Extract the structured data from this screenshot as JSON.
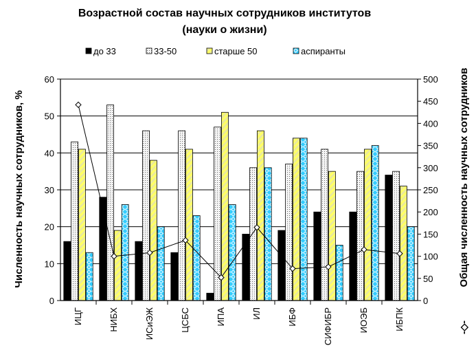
{
  "chart_data": {
    "type": "bar",
    "title_line1": "Возрастной состав научных сотрудников институтов",
    "title_line2": "(науки о жизни)",
    "ylabel": "Численность научных сотрудников, %",
    "y2label": "Общая численность научных сотрудников",
    "y2marker": "-◇-",
    "ylim": [
      0,
      60
    ],
    "y2lim": [
      0,
      500
    ],
    "yticks": [
      "0",
      "10",
      "20",
      "30",
      "40",
      "50",
      "60"
    ],
    "y2ticks": [
      "0",
      "50",
      "100",
      "150",
      "200",
      "250",
      "300",
      "350",
      "400",
      "450",
      "500"
    ],
    "legend_position": "top",
    "grid": true,
    "categories": [
      "ИЦГ",
      "НИБХ",
      "ИСиЭЖ",
      "ЦСБС",
      "ИПА",
      "ИЛ",
      "ИБФ",
      "СИФИБР",
      "ИОЭБ",
      "ИБПК"
    ],
    "series": [
      {
        "name": "до 33",
        "color": "#000000",
        "values": [
          16,
          28,
          16,
          13,
          2,
          18,
          19,
          24,
          24,
          34
        ]
      },
      {
        "name": "33-50",
        "color": "#f4f4f4",
        "values": [
          43,
          53,
          46,
          46,
          47,
          36,
          37,
          41,
          35,
          35
        ]
      },
      {
        "name": "старше 50",
        "color": "#ffff66",
        "values": [
          41,
          19,
          38,
          41,
          51,
          46,
          44,
          35,
          41,
          31
        ]
      },
      {
        "name": "аспиранты",
        "color": "#33ccff",
        "values": [
          13,
          26,
          20,
          23,
          26,
          36,
          44,
          15,
          42,
          20
        ]
      }
    ],
    "line_series": {
      "values": [
        442,
        100,
        108,
        136,
        52,
        165,
        72,
        76,
        115,
        106
      ]
    }
  }
}
